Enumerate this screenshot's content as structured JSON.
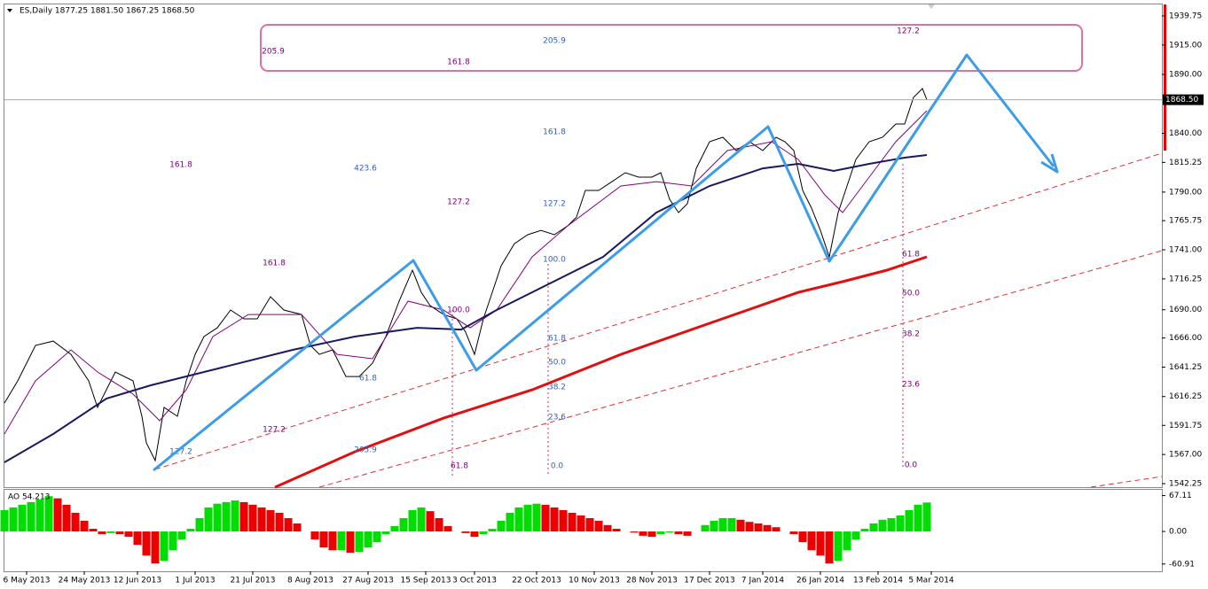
{
  "chart_data": [
    {
      "type": "line",
      "title": "ES,Daily  1877.25 1881.50 1867.25 1868.50",
      "xlim": [
        0,
        261
      ],
      "ylim": [
        1538.5,
        1949.5
      ],
      "yticks": [
        1939.75,
        {
          "value": 1915,
          "label": "1915.00"
        },
        {
          "value": 1890,
          "label": "1890.00"
        },
        {
          "value": 1840,
          "label": "1840.00"
        },
        1815.25,
        {
          "value": 1790,
          "label": "1790.00"
        },
        1765.75,
        {
          "value": 1741,
          "label": "1741.00"
        },
        1716.25,
        {
          "value": 1690,
          "label": "1690.00"
        },
        {
          "value": 1666,
          "label": "1666.00"
        },
        1641.25,
        1616.25,
        1591.75,
        {
          "value": 1567,
          "label": "1567.00"
        },
        1542.25
      ],
      "last_price": {
        "value": 1868.5,
        "label": "1868.50"
      },
      "series": [
        {
          "color": "#000000",
          "x": [
            0,
            3,
            7,
            11,
            15,
            19,
            21,
            25,
            29,
            31,
            32,
            34,
            36,
            39,
            41,
            43,
            45,
            48,
            51,
            54,
            57,
            60,
            63,
            67,
            69,
            71,
            74,
            77,
            80,
            83,
            86,
            89,
            92,
            94,
            96,
            99,
            102,
            104,
            106,
            108,
            110,
            112,
            115,
            118,
            121,
            124,
            127,
            129,
            131,
            134,
            137,
            140,
            143,
            146,
            148,
            150,
            152,
            154,
            156,
            159,
            162,
            165,
            168,
            171,
            174,
            176,
            178,
            180,
            182,
            184,
            186,
            188,
            190,
            192,
            195,
            198,
            201,
            203,
            205,
            207,
            208
          ],
          "values": [
            1610.7,
            1629.6,
            1659.7,
            1663.4,
            1652.1,
            1629.6,
            1607,
            1637.1,
            1629.6,
            1599.5,
            1576.9,
            1561.8,
            1607,
            1599.5,
            1629.6,
            1652.1,
            1667.2,
            1674.7,
            1689.8,
            1682.3,
            1682.3,
            1701.1,
            1689.8,
            1686,
            1659.7,
            1652.1,
            1655.9,
            1633.3,
            1633.3,
            1644.6,
            1667.2,
            1697.3,
            1723.7,
            1704.8,
            1693.5,
            1686,
            1682.3,
            1671,
            1652.1,
            1682.3,
            1704.8,
            1727.4,
            1746.2,
            1753.8,
            1757.5,
            1753.8,
            1761.3,
            1768.8,
            1791.4,
            1791.4,
            1798.9,
            1806.5,
            1802.7,
            1802.7,
            1806.5,
            1783.9,
            1772.6,
            1780.1,
            1810.2,
            1832.8,
            1836.6,
            1825.3,
            1832.8,
            1825.3,
            1836.6,
            1832.8,
            1825.3,
            1791.4,
            1776.4,
            1757.5,
            1735,
            1772.6,
            1795.2,
            1817.8,
            1832.8,
            1836.6,
            1847.9,
            1847.9,
            1870.5,
            1878,
            1868.5
          ]
        },
        {
          "color": "#800080",
          "x": [
            0,
            7,
            15,
            21,
            29,
            35,
            41,
            47,
            55,
            67,
            75,
            83,
            91,
            99,
            105,
            111,
            119,
            127,
            139,
            147,
            155,
            163,
            173,
            179,
            185,
            189,
            195,
            201,
            208
          ],
          "values": [
            1584.4,
            1629.6,
            1655.9,
            1637.1,
            1618.3,
            1595.7,
            1622,
            1667.2,
            1686,
            1686,
            1652.1,
            1648.4,
            1697.3,
            1689.8,
            1674.7,
            1689.8,
            1735,
            1761.3,
            1795.2,
            1798.9,
            1795.2,
            1825.3,
            1832.8,
            1817.8,
            1787.6,
            1772.6,
            1802.7,
            1832.8,
            1859.2
          ]
        },
        {
          "color": "#1a1a5e",
          "x": [
            0,
            11,
            23,
            33,
            49,
            65,
            79,
            93,
            103,
            111,
            123,
            135,
            147,
            159,
            171,
            179,
            187,
            195,
            203,
            208
          ],
          "values": [
            1560.3,
            1584.4,
            1614.5,
            1625.8,
            1640.9,
            1655.9,
            1667.2,
            1674.7,
            1673.2,
            1689.8,
            1712.4,
            1735,
            1772.6,
            1795.2,
            1810.2,
            1814,
            1808,
            1814,
            1819.3,
            1821.5
          ]
        },
        {
          "color": "#e01010",
          "x": [
            61,
            79,
            99,
            119,
            139,
            159,
            179,
            189,
            199,
            208
          ],
          "values": [
            1539.2,
            1569.3,
            1597.9,
            1622,
            1652.1,
            1678.5,
            1704.8,
            1713.9,
            1723.7,
            1735
          ]
        }
      ],
      "annotations": [
        "205.9",
        "205.9",
        "127.2",
        "161.8",
        "161.8",
        "161.8",
        "423.6",
        "127.2",
        "127.2",
        "161.8",
        "100.0",
        "61.8",
        "50.0",
        "38.2",
        "23.6",
        "0.0",
        "61.8",
        "50.0",
        "38.2",
        "23.6",
        "0.0",
        "100.0",
        "61.8",
        "127.2",
        "205.9",
        "127.2",
        "61.8"
      ]
    },
    {
      "type": "bar",
      "title": "AO 54.213",
      "xlim": [
        0,
        261
      ],
      "ylim": [
        -74.5,
        78
      ],
      "yticks": [
        67.11,
        {
          "value": 0,
          "label": "0.00"
        },
        -60.91
      ],
      "up_color": "#00dd00",
      "down_color": "#ee0000",
      "x": [
        0,
        2,
        4,
        6,
        8,
        10,
        12,
        14,
        16,
        18,
        20,
        22,
        24,
        26,
        28,
        30,
        32,
        34,
        36,
        38,
        40,
        42,
        44,
        46,
        48,
        50,
        52,
        54,
        56,
        58,
        60,
        62,
        64,
        66,
        68,
        70,
        72,
        74,
        76,
        78,
        80,
        82,
        84,
        86,
        88,
        90,
        92,
        94,
        96,
        98,
        100,
        102,
        104,
        106,
        108,
        110,
        112,
        114,
        116,
        118,
        120,
        122,
        124,
        126,
        128,
        130,
        132,
        134,
        136,
        138,
        140,
        142,
        144,
        146,
        148,
        150,
        152,
        154,
        156,
        158,
        160,
        162,
        164,
        166,
        168,
        170,
        172,
        174,
        176,
        178,
        180,
        182,
        184,
        186,
        188,
        190,
        192,
        194,
        196,
        198,
        200,
        202,
        204,
        206,
        208
      ],
      "values": [
        40,
        45,
        50,
        55,
        60,
        66,
        62,
        50,
        35,
        20,
        5,
        -5,
        -3,
        -5,
        -10,
        -25,
        -45,
        -60,
        -55,
        -35,
        -15,
        5,
        25,
        45,
        52,
        55,
        58,
        55,
        50,
        45,
        40,
        35,
        25,
        15,
        0,
        -15,
        -30,
        -35,
        -35,
        -40,
        -38,
        -30,
        -20,
        -5,
        10,
        25,
        40,
        45,
        38,
        25,
        10,
        0,
        -3,
        -10,
        -5,
        5,
        20,
        35,
        45,
        50,
        52,
        50,
        45,
        40,
        35,
        30,
        25,
        20,
        12,
        5,
        0,
        -2,
        -8,
        -10,
        -5,
        -2,
        -5,
        -8,
        0,
        12,
        20,
        25,
        25,
        22,
        18,
        15,
        12,
        8,
        0,
        -5,
        -20,
        -35,
        -45,
        -60,
        -55,
        -35,
        -15,
        5,
        15,
        22,
        25,
        30,
        40,
        50,
        54.21
      ],
      "xticks": [
        {
          "value": 5,
          "label": "6 May 2013"
        },
        {
          "value": 18,
          "label": "24 May 2013"
        },
        {
          "value": 30,
          "label": "12 Jun 2013"
        },
        {
          "value": 43,
          "label": "1 Jul 2013"
        },
        {
          "value": 56,
          "label": "21 Jul 2013"
        },
        {
          "value": 69,
          "label": "8 Aug 2013"
        },
        {
          "value": 82,
          "label": "27 Aug 2013"
        },
        {
          "value": 95,
          "label": "15 Sep 2013"
        },
        {
          "value": 106,
          "label": "3 Oct 2013"
        },
        {
          "value": 120,
          "label": "22 Oct 2013"
        },
        {
          "value": 133,
          "label": "10 Nov 2013"
        },
        {
          "value": 146,
          "label": "28 Nov 2013"
        },
        {
          "value": 159,
          "label": "17 Dec 2013"
        },
        {
          "value": 171,
          "label": "7 Jan 2014"
        },
        {
          "value": 184,
          "label": "26 Jan 2014"
        },
        {
          "value": 197,
          "label": "13 Feb 2014"
        },
        {
          "value": 209,
          "label": "5 Mar 2014"
        }
      ]
    }
  ]
}
